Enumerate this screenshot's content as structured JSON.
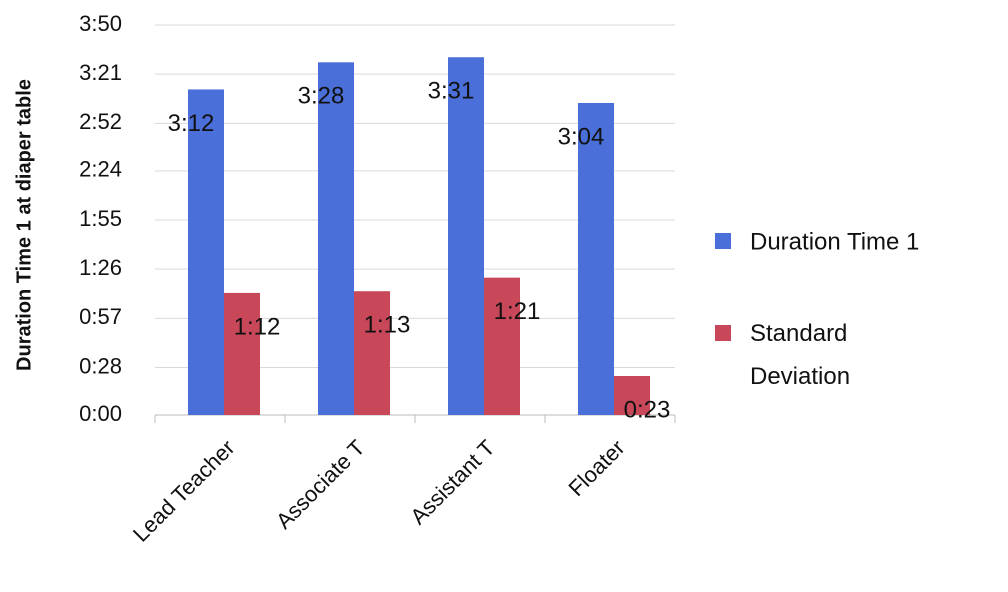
{
  "chart_data": {
    "type": "bar",
    "y_label": "Duration Time 1 at diaper table",
    "categories": [
      "Lead Teacher",
      "Associate T",
      "Assistant T",
      "Floater"
    ],
    "series": [
      {
        "name": "Duration Time 1",
        "color": "#4a6fd8",
        "values": [
          192,
          208,
          211,
          184
        ],
        "value_labels": [
          "3:12",
          "3:28",
          "3:31",
          "3:04"
        ]
      },
      {
        "name": "Standard Deviation",
        "color": "#c8485a",
        "values": [
          72,
          73,
          81,
          23
        ],
        "value_labels": [
          "1:12",
          "1:13",
          "1:21",
          "0:23"
        ]
      }
    ],
    "ylim": [
      0,
      230
    ],
    "yticks": [
      {
        "value": 0,
        "label": "0:00"
      },
      {
        "value": 28,
        "label": "0:28"
      },
      {
        "value": 57,
        "label": "0:57"
      },
      {
        "value": 86,
        "label": "1:26"
      },
      {
        "value": 115,
        "label": "1:55"
      },
      {
        "value": 144,
        "label": "2:24"
      },
      {
        "value": 172,
        "label": "2:52"
      },
      {
        "value": 201,
        "label": "3:21"
      },
      {
        "value": 230,
        "label": "3:50"
      }
    ],
    "grid": true,
    "legend": "right"
  }
}
